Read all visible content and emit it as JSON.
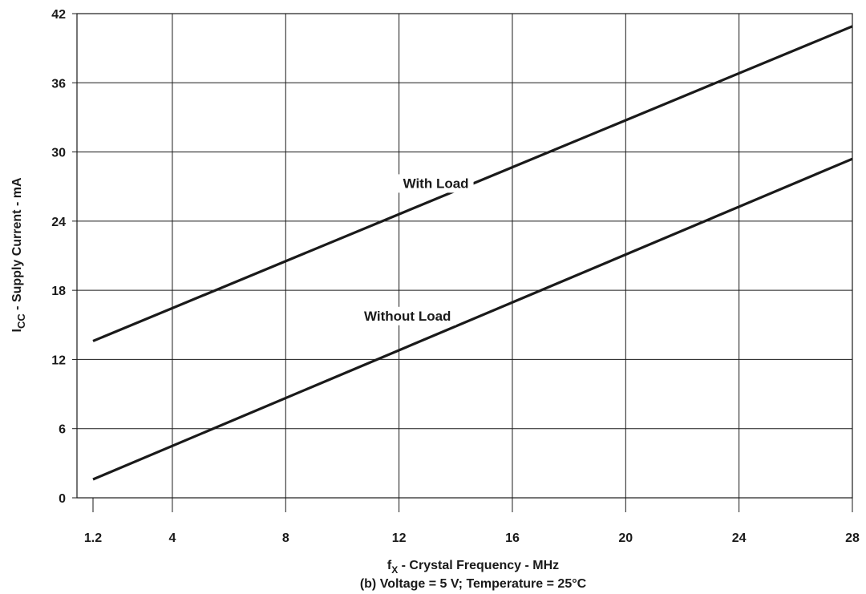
{
  "chart_data": {
    "type": "line",
    "xlabel_main": "f",
    "xlabel_sub": "X",
    "xlabel_rest": " - Crystal Frequency - MHz",
    "caption": "(b) Voltage = 5 V; Temperature = 25°C",
    "ylabel_main": "I",
    "ylabel_sub": "CC",
    "ylabel_rest": " - Supply Current - mA",
    "x_ticks": [
      1.2,
      4,
      8,
      12,
      16,
      20,
      24,
      28
    ],
    "x_tick_labels": [
      "1.2",
      "4",
      "8",
      "12",
      "16",
      "20",
      "24",
      "28"
    ],
    "y_ticks": [
      0,
      6,
      12,
      18,
      24,
      30,
      36,
      42
    ],
    "y_tick_labels": [
      "0",
      "6",
      "12",
      "18",
      "24",
      "30",
      "36",
      "42"
    ],
    "xlim": [
      1.2,
      28
    ],
    "ylim": [
      0,
      42
    ],
    "grid": true,
    "series": [
      {
        "name": "With Load",
        "x": [
          1.2,
          28
        ],
        "y": [
          13.6,
          40.9
        ],
        "label_x": 13.3,
        "label_y": 27.3
      },
      {
        "name": "Without Load",
        "x": [
          1.2,
          28
        ],
        "y": [
          1.6,
          29.4
        ],
        "label_x": 12.3,
        "label_y": 15.8
      }
    ],
    "colors": {
      "line": "#1a1a1a",
      "grid": "#1a1a1a",
      "background": "#ffffff"
    }
  }
}
